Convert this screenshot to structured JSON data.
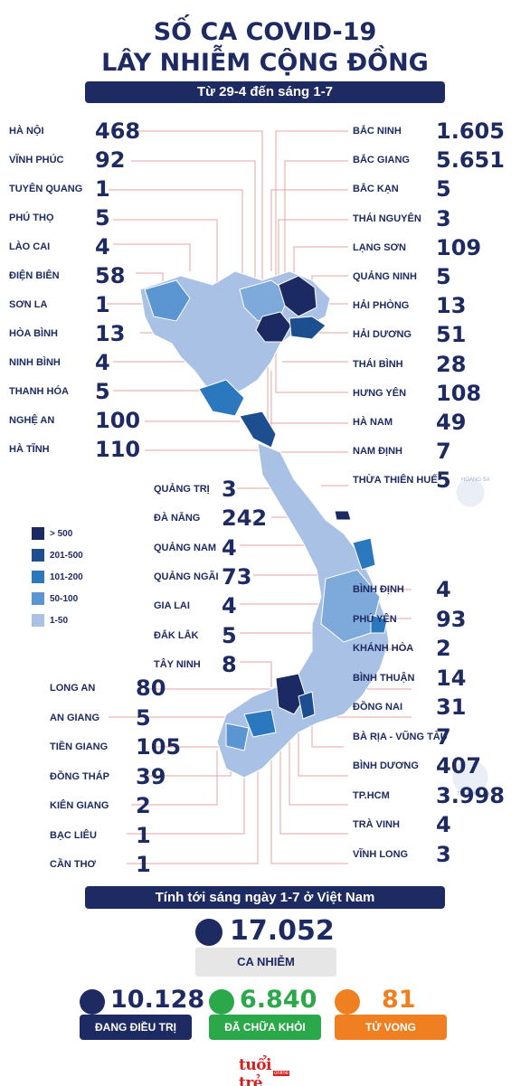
{
  "header": {
    "title_line1": "SỐ CA COVID-19",
    "title_line2": "LÂY NHIỄM CỘNG ĐỒNG",
    "subtitle": "Từ 29-4 đến sáng 1-7"
  },
  "provinces_left": [
    {
      "name": "HÀ NỘI",
      "value": "468"
    },
    {
      "name": "VĨNH PHÚC",
      "value": "92"
    },
    {
      "name": "TUYÊN QUANG",
      "value": "1"
    },
    {
      "name": "PHÚ THỌ",
      "value": "5"
    },
    {
      "name": "LÀO CAI",
      "value": "4"
    },
    {
      "name": "ĐIỆN BIÊN",
      "value": "58"
    },
    {
      "name": "SƠN LA",
      "value": "1"
    },
    {
      "name": "HÒA BÌNH",
      "value": "13"
    },
    {
      "name": "NINH BÌNH",
      "value": "4"
    },
    {
      "name": "THANH HÓA",
      "value": "5"
    },
    {
      "name": "NGHỆ AN",
      "value": "100"
    },
    {
      "name": "HÀ TĨNH",
      "value": "110"
    }
  ],
  "provinces_right": [
    {
      "name": "BẮC NINH",
      "value": "1.605"
    },
    {
      "name": "BẮC GIANG",
      "value": "5.651"
    },
    {
      "name": "BẮC KẠN",
      "value": "5"
    },
    {
      "name": "THÁI NGUYÊN",
      "value": "3"
    },
    {
      "name": "LẠNG SƠN",
      "value": "109"
    },
    {
      "name": "QUẢNG NINH",
      "value": "5"
    },
    {
      "name": "HẢI PHÒNG",
      "value": "13"
    },
    {
      "name": "HẢI DƯƠNG",
      "value": "51"
    },
    {
      "name": "THÁI BÌNH",
      "value": "28"
    },
    {
      "name": "HƯNG YÊN",
      "value": "108"
    },
    {
      "name": "HÀ NAM",
      "value": "49"
    },
    {
      "name": "NAM ĐỊNH",
      "value": "7"
    },
    {
      "name": "THỪA THIÊN HUẾ",
      "value": "5"
    }
  ],
  "provinces_mid": [
    {
      "name": "QUẢNG TRỊ",
      "value": "3"
    },
    {
      "name": "ĐÀ NẴNG",
      "value": "242"
    },
    {
      "name": "QUẢNG NAM",
      "value": "4"
    },
    {
      "name": "QUẢNG NGÃI",
      "value": "73"
    },
    {
      "name": "GIA LAI",
      "value": "4"
    },
    {
      "name": "ĐẮK LẮK",
      "value": "5"
    },
    {
      "name": "TÂY NINH",
      "value": "8"
    }
  ],
  "provinces_south_right": [
    {
      "name": "BÌNH ĐỊNH",
      "value": "4"
    },
    {
      "name": "PHÚ YÊN",
      "value": "93"
    },
    {
      "name": "KHÁNH HÒA",
      "value": "2"
    },
    {
      "name": "BÌNH THUẬN",
      "value": "14"
    },
    {
      "name": "ĐỒNG NAI",
      "value": "31"
    },
    {
      "name": "BÀ RỊA - VŨNG TÀU",
      "value": "7"
    },
    {
      "name": "BÌNH DƯƠNG",
      "value": "407"
    },
    {
      "name": "TP.HCM",
      "value": "3.998"
    },
    {
      "name": "TRÀ VINH",
      "value": "4"
    },
    {
      "name": "VĨNH LONG",
      "value": "3"
    }
  ],
  "provinces_south_left": [
    {
      "name": "LONG AN",
      "value": "80"
    },
    {
      "name": "AN GIANG",
      "value": "5"
    },
    {
      "name": "TIỀN GIANG",
      "value": "105"
    },
    {
      "name": "ĐỒNG THÁP",
      "value": "39"
    },
    {
      "name": "KIÊN GIANG",
      "value": "2"
    },
    {
      "name": "BẠC LIÊU",
      "value": "1"
    },
    {
      "name": "CẦN THƠ",
      "value": "1"
    }
  ],
  "islands": {
    "hoang_sa": "HOÀNG SA",
    "truong_sa": "TRƯỜNG SA"
  },
  "legend": [
    {
      "label": "> 500",
      "color": "#1b2a63"
    },
    {
      "label": "201-500",
      "color": "#1d4e8f"
    },
    {
      "label": "101-200",
      "color": "#2b78bf"
    },
    {
      "label": "50-100",
      "color": "#5b95d2"
    },
    {
      "label": "1-50",
      "color": "#a9c1e4"
    }
  ],
  "summary": {
    "bar": "Tính tới sáng ngày 1-7 ở Việt Nam",
    "total_value": "17.052",
    "total_label": "CA NHIỄM",
    "treating_value": "10.128",
    "treating_label": "ĐANG ĐIỀU TRỊ",
    "treating_color": "#1e2b63",
    "recovered_value": "6.840",
    "recovered_label": "ĐÃ CHỮA KHỎI",
    "recovered_color": "#2aa84a",
    "deaths_value": "81",
    "deaths_label": "TỬ VONG",
    "deaths_color": "#f07f22"
  },
  "logo": {
    "text": "tuổi trẻ",
    "sub": "online"
  }
}
